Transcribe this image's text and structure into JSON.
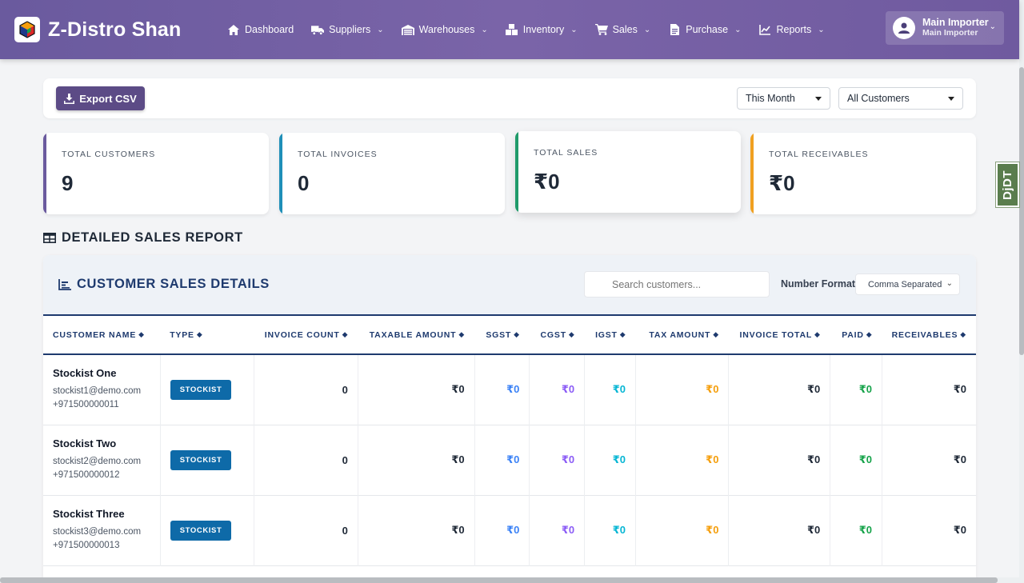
{
  "app": {
    "brand": "Z-Distro Shan",
    "nav": [
      {
        "label": "Dashboard",
        "icon": "home-icon",
        "has_menu": false
      },
      {
        "label": "Suppliers",
        "icon": "truck-icon",
        "has_menu": true
      },
      {
        "label": "Warehouses",
        "icon": "warehouse-icon",
        "has_menu": true
      },
      {
        "label": "Inventory",
        "icon": "boxes-icon",
        "has_menu": true
      },
      {
        "label": "Sales",
        "icon": "cart-icon",
        "has_menu": true
      },
      {
        "label": "Purchase",
        "icon": "file-invoice-icon",
        "has_menu": true
      },
      {
        "label": "Reports",
        "icon": "line-chart-icon",
        "has_menu": true
      }
    ],
    "user": {
      "name": "Main Importer",
      "role": "Main Importer"
    }
  },
  "toolbar": {
    "export_label": "Export CSV",
    "period_select": "This Month",
    "customer_select": "All Customers"
  },
  "stats": [
    {
      "label": "Total Customers",
      "value": "9",
      "color": "#6a5a9e"
    },
    {
      "label": "Total Invoices",
      "value": "0",
      "color": "#1f8fb8"
    },
    {
      "label": "Total Sales",
      "value": "₹0",
      "color": "#1f9a6a"
    },
    {
      "label": "Total Receivables",
      "value": "₹0",
      "color": "#f0a020"
    }
  ],
  "section_title": "DETAILED SALES REPORT",
  "table": {
    "title": "CUSTOMER SALES DETAILS",
    "search_placeholder": "Search customers...",
    "number_format_label": "Number Format:",
    "number_format_value": "Comma Separated",
    "columns": [
      "Customer Name",
      "Type",
      "Invoice Count",
      "Taxable Amount",
      "SGST",
      "CGST",
      "IGST",
      "Tax Amount",
      "Invoice Total",
      "Paid",
      "Receivables"
    ],
    "rows": [
      {
        "name": "Stockist One",
        "email": "stockist1@demo.com",
        "phone": "+971500000011",
        "type": "STOCKIST",
        "invoice_count": "0",
        "taxable": "₹0",
        "sgst": "₹0",
        "cgst": "₹0",
        "igst": "₹0",
        "tax": "₹0",
        "total": "₹0",
        "paid": "₹0",
        "receivables": "₹0"
      },
      {
        "name": "Stockist Two",
        "email": "stockist2@demo.com",
        "phone": "+971500000012",
        "type": "STOCKIST",
        "invoice_count": "0",
        "taxable": "₹0",
        "sgst": "₹0",
        "cgst": "₹0",
        "igst": "₹0",
        "tax": "₹0",
        "total": "₹0",
        "paid": "₹0",
        "receivables": "₹0"
      },
      {
        "name": "Stockist Three",
        "email": "stockist3@demo.com",
        "phone": "+971500000013",
        "type": "STOCKIST",
        "invoice_count": "0",
        "taxable": "₹0",
        "sgst": "₹0",
        "cgst": "₹0",
        "igst": "₹0",
        "tax": "₹0",
        "total": "₹0",
        "paid": "₹0",
        "receivables": "₹0"
      }
    ]
  },
  "colors": {
    "sgst": "#3b82f6",
    "cgst": "#8b5cf6",
    "igst": "#06b6d4",
    "tax": "#f59e0b",
    "paid": "#16a34a"
  },
  "debug_toolbar": "DjDT"
}
